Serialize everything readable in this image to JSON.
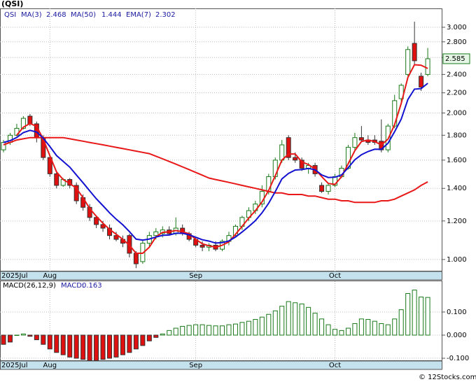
{
  "chart_data": [
    {
      "type": "candlestick",
      "title": "(QSI)",
      "symbol": "QSI",
      "log_scale": true,
      "grid": true,
      "up_color": "#1a7a1a",
      "down_color": "#e01010",
      "categories": [
        "2025Jul",
        null,
        null,
        null,
        null,
        null,
        null,
        "Aug",
        null,
        null,
        null,
        null,
        null,
        null,
        null,
        null,
        null,
        null,
        null,
        null,
        null,
        null,
        null,
        null,
        null,
        null,
        null,
        null,
        null,
        "Sep",
        null,
        null,
        null,
        null,
        null,
        null,
        null,
        null,
        null,
        null,
        null,
        null,
        null,
        null,
        null,
        null,
        null,
        null,
        null,
        null,
        "Oct",
        null,
        null,
        null,
        null,
        null,
        null,
        null,
        null,
        null,
        null,
        null,
        null,
        null,
        null
      ],
      "open": [
        1.68,
        1.74,
        1.8,
        1.86,
        1.97,
        1.9,
        1.78,
        1.62,
        1.5,
        1.42,
        1.46,
        1.42,
        1.34,
        1.28,
        1.22,
        1.18,
        1.16,
        1.12,
        1.1,
        1.12,
        1.03,
        0.99,
        1.08,
        1.12,
        1.13,
        1.15,
        1.13,
        1.16,
        1.13,
        1.1,
        1.07,
        1.06,
        1.07,
        1.05,
        1.09,
        1.12,
        1.17,
        1.22,
        1.26,
        1.3,
        1.38,
        1.48,
        1.6,
        1.78,
        1.62,
        1.6,
        1.54,
        1.56,
        1.42,
        1.38,
        1.42,
        1.48,
        1.54,
        1.7,
        1.78,
        1.76,
        1.76,
        1.75,
        1.68,
        1.88,
        2.14,
        2.4,
        2.78,
        2.38,
        2.4
      ],
      "high": [
        1.76,
        1.82,
        1.9,
        1.97,
        1.99,
        1.92,
        1.8,
        1.64,
        1.52,
        1.47,
        1.47,
        1.44,
        1.36,
        1.3,
        1.23,
        1.2,
        1.18,
        1.14,
        1.12,
        1.13,
        1.04,
        1.1,
        1.14,
        1.16,
        1.17,
        1.17,
        1.22,
        1.18,
        1.14,
        1.11,
        1.09,
        1.08,
        1.09,
        1.1,
        1.14,
        1.18,
        1.23,
        1.28,
        1.32,
        1.42,
        1.5,
        1.62,
        1.76,
        1.8,
        1.66,
        1.62,
        1.58,
        1.58,
        1.44,
        1.43,
        1.5,
        1.56,
        1.72,
        1.82,
        1.88,
        1.8,
        1.8,
        1.94,
        1.9,
        2.18,
        2.3,
        2.74,
        3.08,
        2.42,
        2.72
      ],
      "low": [
        1.66,
        1.72,
        1.79,
        1.85,
        1.88,
        1.74,
        1.6,
        1.48,
        1.4,
        1.41,
        1.4,
        1.3,
        1.26,
        1.2,
        1.16,
        1.14,
        1.1,
        1.09,
        1.06,
        1.01,
        0.96,
        0.98,
        1.06,
        1.1,
        1.11,
        1.12,
        1.12,
        1.12,
        1.09,
        1.06,
        1.04,
        1.04,
        1.04,
        1.04,
        1.07,
        1.11,
        1.15,
        1.2,
        1.24,
        1.28,
        1.36,
        1.46,
        1.58,
        1.6,
        1.58,
        1.52,
        1.5,
        1.48,
        1.37,
        1.36,
        1.41,
        1.47,
        1.53,
        1.68,
        1.74,
        1.72,
        1.72,
        1.66,
        1.66,
        1.86,
        2.1,
        2.38,
        2.52,
        2.22,
        2.38
      ],
      "close": [
        1.74,
        1.8,
        1.86,
        1.95,
        1.9,
        1.78,
        1.62,
        1.5,
        1.42,
        1.46,
        1.42,
        1.32,
        1.28,
        1.22,
        1.18,
        1.16,
        1.12,
        1.1,
        1.08,
        1.03,
        0.98,
        1.08,
        1.12,
        1.14,
        1.15,
        1.13,
        1.16,
        1.13,
        1.1,
        1.07,
        1.06,
        1.07,
        1.05,
        1.09,
        1.12,
        1.17,
        1.22,
        1.26,
        1.3,
        1.38,
        1.48,
        1.6,
        1.72,
        1.62,
        1.6,
        1.54,
        1.56,
        1.5,
        1.38,
        1.42,
        1.48,
        1.54,
        1.7,
        1.78,
        1.76,
        1.74,
        1.74,
        1.68,
        1.88,
        2.12,
        2.28,
        2.7,
        2.56,
        2.26,
        2.585
      ],
      "series": [
        {
          "name": "MA(3)",
          "color": "#e81818",
          "values": [
            null,
            null,
            1.8,
            1.87,
            1.903,
            1.877,
            1.767,
            1.633,
            1.513,
            1.46,
            1.433,
            1.4,
            1.34,
            1.273,
            1.227,
            1.187,
            1.153,
            1.127,
            1.1,
            1.07,
            1.03,
            1.03,
            1.06,
            1.113,
            1.137,
            1.14,
            1.147,
            1.14,
            1.13,
            1.1,
            1.077,
            1.067,
            1.06,
            1.07,
            1.087,
            1.127,
            1.17,
            1.217,
            1.26,
            1.313,
            1.387,
            1.487,
            1.6,
            1.647,
            1.647,
            1.587,
            1.567,
            1.533,
            1.48,
            1.433,
            1.427,
            1.48,
            1.573,
            1.673,
            1.747,
            1.76,
            1.747,
            1.72,
            1.767,
            1.893,
            2.093,
            2.367,
            2.513,
            2.507,
            2.468
          ]
        },
        {
          "name": "MA(50)",
          "color": "#e81818",
          "values": [
            1.72,
            1.74,
            1.76,
            1.77,
            1.78,
            1.78,
            1.78,
            1.78,
            1.78,
            1.78,
            1.77,
            1.76,
            1.75,
            1.74,
            1.73,
            1.72,
            1.71,
            1.7,
            1.69,
            1.68,
            1.67,
            1.66,
            1.65,
            1.63,
            1.61,
            1.59,
            1.57,
            1.55,
            1.53,
            1.51,
            1.49,
            1.47,
            1.46,
            1.45,
            1.44,
            1.43,
            1.42,
            1.41,
            1.4,
            1.39,
            1.38,
            1.37,
            1.37,
            1.36,
            1.36,
            1.36,
            1.35,
            1.35,
            1.34,
            1.33,
            1.33,
            1.32,
            1.32,
            1.31,
            1.31,
            1.31,
            1.31,
            1.32,
            1.32,
            1.33,
            1.35,
            1.37,
            1.39,
            1.42,
            1.444
          ]
        },
        {
          "name": "EMA(7)",
          "color": "#1212d0",
          "values": [
            1.74,
            1.755,
            1.781,
            1.823,
            1.842,
            1.827,
            1.775,
            1.706,
            1.635,
            1.591,
            1.548,
            1.491,
            1.438,
            1.384,
            1.333,
            1.29,
            1.247,
            1.21,
            1.178,
            1.141,
            1.101,
            1.096,
            1.102,
            1.112,
            1.121,
            1.123,
            1.132,
            1.132,
            1.124,
            1.111,
            1.098,
            1.091,
            1.081,
            1.083,
            1.092,
            1.112,
            1.139,
            1.169,
            1.202,
            1.247,
            1.305,
            1.379,
            1.464,
            1.503,
            1.527,
            1.53,
            1.538,
            1.529,
            1.492,
            1.474,
            1.476,
            1.492,
            1.544,
            1.603,
            1.642,
            1.667,
            1.685,
            1.684,
            1.733,
            1.83,
            1.943,
            2.132,
            2.239,
            2.244,
            2.302
          ]
        }
      ],
      "ylim": [
        0.945,
        3.28
      ],
      "yticks": [
        {
          "value": 1,
          "label": "1.000"
        },
        {
          "value": 1.2,
          "label": "1.200"
        },
        {
          "value": 1.4,
          "label": "1.400"
        },
        {
          "value": 1.6,
          "label": "1.600"
        },
        {
          "value": 1.8,
          "label": "1.800"
        },
        {
          "value": 2,
          "label": "2.000"
        },
        {
          "value": 2.2,
          "label": "2.200"
        },
        {
          "value": 2.4,
          "label": "2.400"
        },
        {
          "value": 2.6,
          "label": "2.600"
        },
        {
          "value": 2.8,
          "label": "2.800"
        },
        {
          "value": 3,
          "label": "3.000"
        }
      ]
    },
    {
      "type": "bar",
      "title": "MACD(26,12,9)",
      "legend_label": "MACD:",
      "grid": true,
      "up_color": "#1a7a1a",
      "down_color": "#e01010",
      "categories": [
        "2025Jul",
        null,
        null,
        null,
        null,
        null,
        null,
        "Aug",
        null,
        null,
        null,
        null,
        null,
        null,
        null,
        null,
        null,
        null,
        null,
        null,
        null,
        null,
        null,
        null,
        null,
        null,
        null,
        null,
        null,
        "Sep",
        null,
        null,
        null,
        null,
        null,
        null,
        null,
        null,
        null,
        null,
        null,
        null,
        null,
        null,
        null,
        null,
        null,
        null,
        null,
        null,
        "Oct",
        null,
        null,
        null,
        null,
        null,
        null,
        null,
        null,
        null,
        null,
        null,
        null,
        null,
        null
      ],
      "values": [
        -0.04,
        -0.03,
        0,
        0.005,
        -0.005,
        -0.02,
        -0.04,
        -0.06,
        -0.075,
        -0.085,
        -0.095,
        -0.1,
        -0.105,
        -0.11,
        -0.11,
        -0.105,
        -0.1,
        -0.095,
        -0.085,
        -0.075,
        -0.06,
        -0.045,
        -0.025,
        -0.01,
        0.005,
        0.02,
        0.03,
        0.038,
        0.042,
        0.045,
        0.045,
        0.042,
        0.04,
        0.04,
        0.045,
        0.048,
        0.055,
        0.06,
        0.068,
        0.078,
        0.09,
        0.105,
        0.125,
        0.145,
        0.14,
        0.135,
        0.12,
        0.095,
        0.07,
        0.045,
        0.025,
        0.02,
        0.03,
        0.05,
        0.07,
        0.068,
        0.06,
        0.05,
        0.045,
        0.07,
        0.11,
        0.18,
        0.195,
        0.165,
        0.163
      ],
      "ylim": [
        -0.112,
        0.233
      ],
      "yticks": [
        {
          "value": -0.1,
          "label": "-0.100"
        },
        {
          "value": 0,
          "label": "0.000"
        },
        {
          "value": 0.1,
          "label": "0.100"
        }
      ]
    }
  ],
  "footer": "© 12Stocks.com"
}
